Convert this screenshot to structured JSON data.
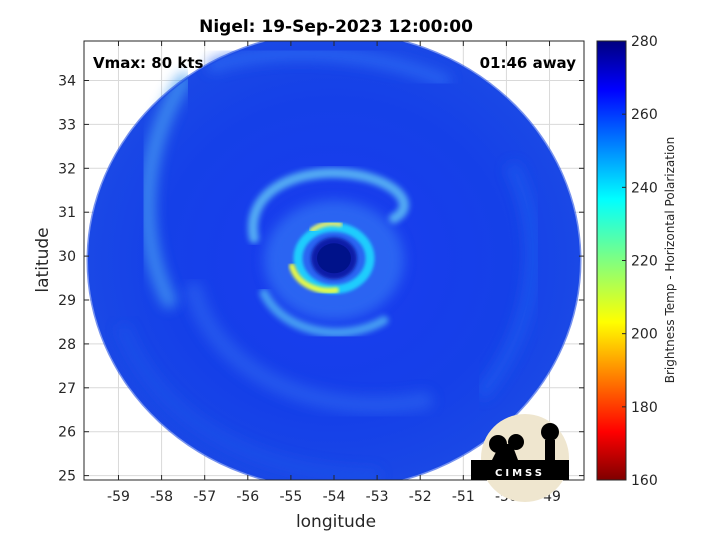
{
  "chart_data": {
    "type": "heatmap",
    "title": "Nigel: 19-Sep-2023 12:00:00",
    "xlabel": "longitude",
    "ylabel": "latitude",
    "xlim": [
      -59.8,
      -48.2
    ],
    "ylim": [
      24.9,
      34.9
    ],
    "x_ticks": [
      -59,
      -58,
      -57,
      -56,
      -55,
      -54,
      -53,
      -52,
      -51,
      -50,
      -49
    ],
    "y_ticks": [
      25,
      26,
      27,
      28,
      29,
      30,
      31,
      32,
      33,
      34
    ],
    "grid": true,
    "colorbar": {
      "label": "Brightness Temp - Horizontal Polarization",
      "range": [
        160,
        280
      ],
      "ticks": [
        160,
        180,
        200,
        220,
        240,
        260,
        280
      ],
      "colormap": "jet"
    },
    "storm_center": {
      "lon": -54.0,
      "lat": 29.95
    },
    "swath_center": {
      "lon": -54.0,
      "lat": 29.9
    },
    "annotations": {
      "vmax": "Vmax: 80 kts",
      "time_offset": "01:46 away"
    }
  },
  "logo": {
    "text": "CIMSS"
  }
}
